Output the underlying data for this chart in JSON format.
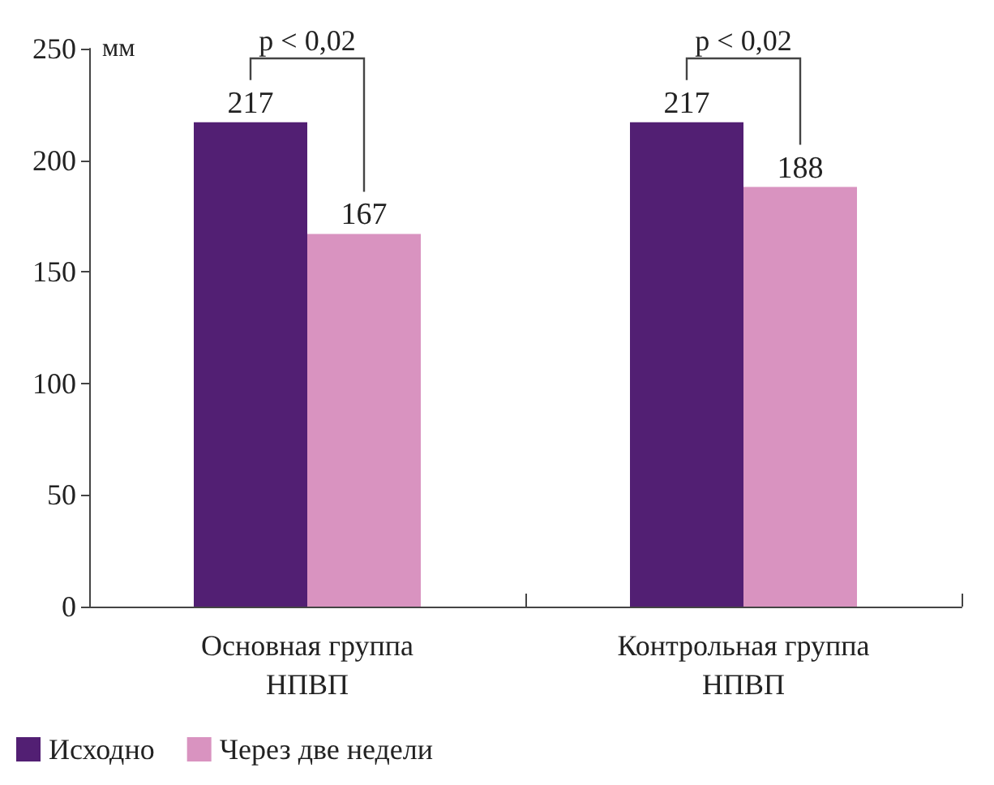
{
  "chart_data": {
    "type": "bar",
    "ylabel": "мм",
    "categories": [
      "Основная группа\nНПВП",
      "Контрольная группа\nНПВП"
    ],
    "series": [
      {
        "name": "Исходно",
        "color": "#521f73",
        "values": [
          217,
          217
        ]
      },
      {
        "name": "Через две недели",
        "color": "#d993c0",
        "values": [
          167,
          188
        ]
      }
    ],
    "ylim": [
      0,
      250
    ],
    "yticks": [
      0,
      50,
      100,
      150,
      200,
      250
    ],
    "data_labels": true,
    "grid": false,
    "legend": "bottom left",
    "annotations": [
      "p < 0,02",
      "p < 0,02"
    ]
  }
}
